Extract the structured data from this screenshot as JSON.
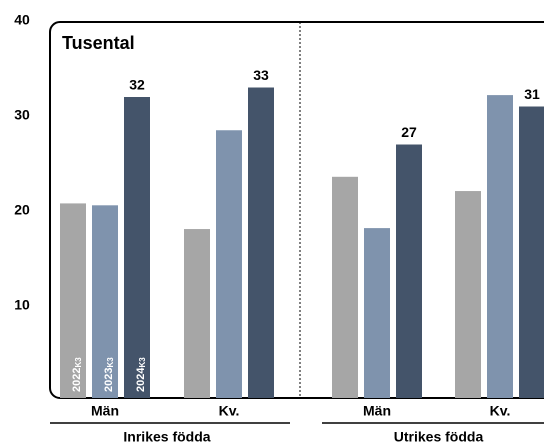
{
  "chart_data": {
    "type": "bar",
    "title": "Tusental",
    "categories": [
      "Män",
      "Kv.",
      "Män",
      "Kv."
    ],
    "groups": [
      {
        "label": "Inrikes födda",
        "span": [
          0,
          1
        ]
      },
      {
        "label": "Utrikes födda",
        "span": [
          2,
          3
        ]
      }
    ],
    "series": [
      {
        "name": "2022",
        "suffix": "K3",
        "color": "#a6a6a6",
        "values": [
          20.8,
          18.1,
          23.6,
          22.1
        ],
        "labels": false
      },
      {
        "name": "2023",
        "suffix": "K3",
        "color": "#7f93ad",
        "values": [
          20.6,
          28.5,
          18.2,
          32.2
        ],
        "labels": false
      },
      {
        "name": "2024",
        "suffix": "K3",
        "color": "#44546a",
        "values": [
          32,
          33,
          27,
          31
        ],
        "labels": true
      }
    ],
    "ylim": [
      0,
      40
    ],
    "yticks": [
      10,
      20,
      30,
      40
    ],
    "grid": false
  }
}
